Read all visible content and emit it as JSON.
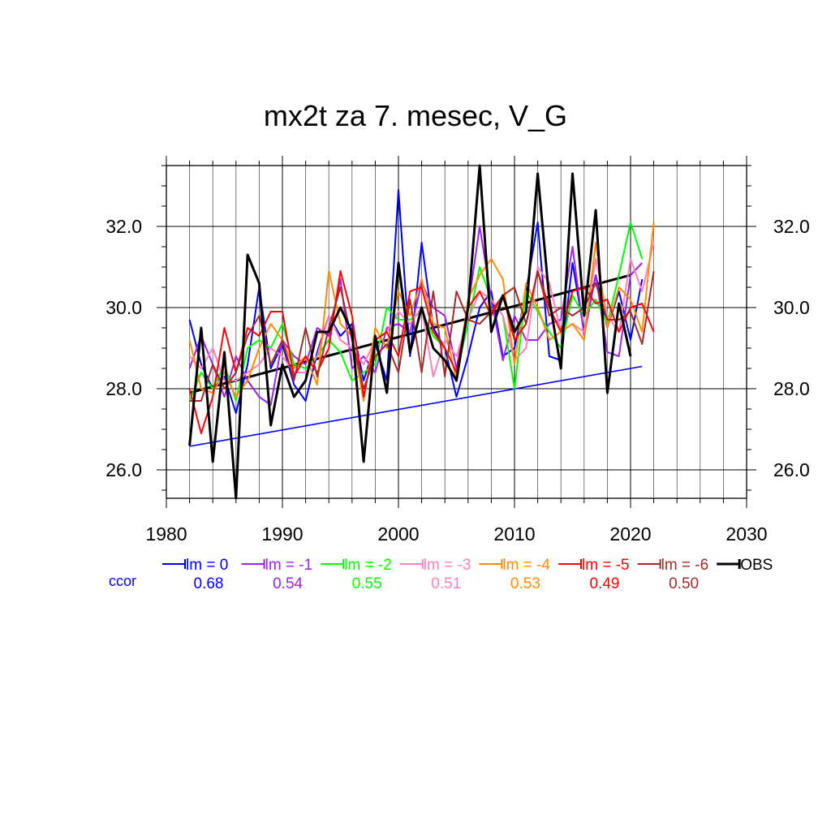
{
  "chart_data": {
    "type": "line",
    "title": "mx2t za 7. mesec, V_G",
    "xlim": [
      1980,
      2030
    ],
    "ylim": [
      25.3,
      33.5
    ],
    "x_ticks": [
      "1980",
      "1990",
      "2000",
      "2010",
      "2020",
      "2030"
    ],
    "y_ticks": [
      "26.0",
      "28.0",
      "30.0",
      "32.0"
    ],
    "grid": true,
    "legend_position": "bottom",
    "ccor_label": "ccor",
    "ccor_color": "#0000ff",
    "series": [
      {
        "name": "lm = 0",
        "color": "#0000ff",
        "ccor": "0.68",
        "x": [
          1982,
          1983,
          1984,
          1985,
          1986,
          1987,
          1988,
          1989,
          1990,
          1991,
          1992,
          1993,
          1994,
          1995,
          1996,
          1997,
          1998,
          1999,
          2000,
          2001,
          2002,
          2003,
          2004,
          2005,
          2006,
          2007,
          2008,
          2009,
          2010,
          2011,
          2012,
          2013,
          2014,
          2015,
          2016,
          2017,
          2018,
          2019,
          2020,
          2021
        ],
        "y": [
          29.7,
          28.6,
          28.0,
          28.3,
          27.4,
          28.6,
          30.5,
          28.5,
          29.1,
          28.1,
          27.7,
          28.9,
          29.8,
          29.3,
          29.6,
          28.2,
          29.1,
          28.2,
          32.9,
          28.8,
          31.6,
          29.5,
          29.0,
          27.8,
          28.8,
          30.0,
          30.4,
          28.8,
          29.0,
          30.4,
          32.1,
          28.8,
          28.7,
          31.1,
          29.4,
          30.8,
          29.5,
          30.4,
          29.2,
          30.7
        ]
      },
      {
        "name": "lm = -1",
        "color": "#a020f0",
        "ccor": "0.54",
        "x": [
          1982,
          1983,
          1984,
          1985,
          1986,
          1987,
          1988,
          1989,
          1990,
          1991,
          1992,
          1993,
          1994,
          1995,
          1996,
          1997,
          1998,
          1999,
          2000,
          2001,
          2002,
          2003,
          2004,
          2005,
          2006,
          2007,
          2008,
          2009,
          2010,
          2011,
          2012,
          2013,
          2014,
          2015,
          2016,
          2017,
          2018,
          2019,
          2020,
          2021
        ],
        "y": [
          28.5,
          29.3,
          28.6,
          27.8,
          28.8,
          28.2,
          27.8,
          27.6,
          29.2,
          28.8,
          28.6,
          29.5,
          29.3,
          30.7,
          28.5,
          28.8,
          28.4,
          29.5,
          29.6,
          29.4,
          30.6,
          30.0,
          29.8,
          28.5,
          30.0,
          32.0,
          30.2,
          28.7,
          29.8,
          29.2,
          29.2,
          29.6,
          29.7,
          31.5,
          29.3,
          30.8,
          28.9,
          28.8,
          30.8,
          31.1
        ]
      },
      {
        "name": "lm = -2",
        "color": "#00ff00",
        "ccor": "0.55",
        "x": [
          1982,
          1983,
          1984,
          1985,
          1986,
          1987,
          1988,
          1989,
          1990,
          1991,
          1992,
          1993,
          1994,
          1995,
          1996,
          1997,
          1998,
          1999,
          2000,
          2001,
          2002,
          2003,
          2004,
          2005,
          2006,
          2007,
          2008,
          2009,
          2010,
          2011,
          2012,
          2013,
          2014,
          2015,
          2016,
          2017,
          2018,
          2019,
          2020,
          2021
        ],
        "y": [
          27.7,
          28.4,
          28.0,
          28.6,
          27.7,
          29.0,
          29.2,
          29.0,
          29.6,
          28.6,
          28.5,
          28.8,
          29.2,
          28.9,
          28.2,
          28.4,
          28.6,
          30.0,
          29.7,
          29.7,
          29.9,
          29.3,
          29.0,
          28.4,
          29.6,
          31.0,
          30.2,
          29.8,
          28.0,
          30.4,
          29.9,
          29.4,
          29.0,
          30.3,
          29.8,
          30.2,
          29.6,
          30.8,
          32.1,
          31.2
        ]
      },
      {
        "name": "lm = -3",
        "color": "#ff7fbf",
        "ccor": "0.51",
        "x": [
          1982,
          1983,
          1984,
          1985,
          1986,
          1987,
          1988,
          1989,
          1990,
          1991,
          1992,
          1993,
          1994,
          1995,
          1996,
          1997,
          1998,
          1999,
          2000,
          2001,
          2002,
          2003,
          2004,
          2005,
          2006,
          2007,
          2008,
          2009,
          2010,
          2011,
          2012,
          2013,
          2014,
          2015,
          2016,
          2017,
          2018,
          2019,
          2020,
          2021,
          2022
        ],
        "y": [
          28.8,
          28.5,
          29.0,
          28.2,
          28.2,
          28.4,
          28.6,
          29.0,
          28.8,
          28.4,
          28.4,
          28.8,
          29.8,
          29.2,
          29.0,
          28.6,
          29.2,
          29.4,
          29.9,
          29.6,
          30.0,
          28.3,
          29.2,
          28.8,
          29.7,
          30.4,
          30.2,
          29.8,
          28.7,
          29.0,
          31.0,
          30.6,
          29.4,
          29.6,
          29.4,
          31.2,
          29.8,
          29.4,
          31.2,
          30.4,
          31.6
        ]
      },
      {
        "name": "lm = -4",
        "color": "#ff8c00",
        "ccor": "0.53",
        "x": [
          1982,
          1983,
          1984,
          1985,
          1986,
          1987,
          1988,
          1989,
          1990,
          1991,
          1992,
          1993,
          1994,
          1995,
          1996,
          1997,
          1998,
          1999,
          2000,
          2001,
          2002,
          2003,
          2004,
          2005,
          2006,
          2007,
          2008,
          2009,
          2010,
          2011,
          2012,
          2013,
          2014,
          2015,
          2016,
          2017,
          2018,
          2019,
          2020,
          2021,
          2022
        ],
        "y": [
          29.2,
          28.0,
          27.9,
          28.4,
          27.8,
          28.2,
          29.0,
          29.6,
          29.2,
          28.5,
          28.8,
          28.1,
          30.9,
          29.6,
          29.3,
          27.7,
          29.5,
          29.0,
          30.4,
          29.8,
          30.7,
          29.6,
          29.5,
          28.2,
          30.2,
          30.8,
          31.2,
          30.7,
          28.6,
          30.6,
          30.0,
          29.2,
          29.4,
          29.6,
          29.2,
          31.6,
          29.5,
          30.5,
          30.2,
          29.4,
          32.1
        ]
      },
      {
        "name": "lm = -5",
        "color": "#ff0000",
        "ccor": "0.49",
        "x": [
          1982,
          1983,
          1984,
          1985,
          1986,
          1987,
          1988,
          1989,
          1990,
          1991,
          1992,
          1993,
          1994,
          1995,
          1996,
          1997,
          1998,
          1999,
          2000,
          2001,
          2002,
          2003,
          2004,
          2005,
          2006,
          2007,
          2008,
          2009,
          2010,
          2011,
          2012,
          2013,
          2014,
          2015,
          2016,
          2017,
          2018,
          2019,
          2020,
          2021,
          2022
        ],
        "y": [
          28.0,
          26.9,
          27.8,
          29.5,
          28.4,
          29.5,
          29.3,
          29.9,
          29.9,
          28.3,
          28.8,
          28.4,
          29.0,
          30.9,
          29.8,
          27.8,
          29.2,
          29.4,
          28.8,
          30.4,
          30.5,
          29.4,
          29.0,
          28.4,
          30.0,
          30.4,
          29.8,
          30.3,
          29.2,
          29.6,
          30.9,
          30.0,
          29.4,
          30.4,
          30.5,
          30.1,
          30.2,
          29.4,
          30.0,
          30.1,
          29.4
        ]
      },
      {
        "name": "lm = -6",
        "color": "#a52a2a",
        "ccor": "0.50",
        "x": [
          1982,
          1983,
          1984,
          1985,
          1986,
          1987,
          1988,
          1989,
          1990,
          1991,
          1992,
          1993,
          1994,
          1995,
          1996,
          1997,
          1998,
          1999,
          2000,
          2001,
          2002,
          2003,
          2004,
          2005,
          2006,
          2007,
          2008,
          2009,
          2010,
          2011,
          2012,
          2013,
          2014,
          2015,
          2016,
          2017,
          2018,
          2019,
          2020,
          2021,
          2022
        ],
        "y": [
          27.7,
          27.7,
          28.6,
          28.0,
          28.4,
          29.3,
          29.8,
          28.6,
          29.2,
          28.2,
          29.5,
          28.3,
          29.5,
          30.5,
          29.2,
          28.0,
          28.8,
          29.1,
          28.4,
          30.2,
          28.4,
          30.4,
          28.3,
          30.4,
          29.7,
          29.6,
          29.9,
          30.3,
          30.5,
          29.6,
          30.9,
          29.8,
          30.0,
          29.8,
          30.0,
          30.6,
          29.7,
          29.7,
          29.9,
          29.1,
          30.9
        ]
      },
      {
        "name": "OBS",
        "color": "#000000",
        "ccor": "",
        "x": [
          1982,
          1983,
          1984,
          1985,
          1986,
          1987,
          1988,
          1989,
          1990,
          1991,
          1992,
          1993,
          1994,
          1995,
          1996,
          1997,
          1998,
          1999,
          2000,
          2001,
          2002,
          2003,
          2004,
          2005,
          2006,
          2007,
          2008,
          2009,
          2010,
          2011,
          2012,
          2013,
          2014,
          2015,
          2016,
          2017,
          2018,
          2019,
          2020
        ],
        "y": [
          26.6,
          29.5,
          26.2,
          28.9,
          25.3,
          31.3,
          30.6,
          27.1,
          28.6,
          27.8,
          28.2,
          29.4,
          29.4,
          30.0,
          29.4,
          26.2,
          29.3,
          27.9,
          31.1,
          28.9,
          30.0,
          29.0,
          28.7,
          28.2,
          30.0,
          33.5,
          29.4,
          30.3,
          29.4,
          29.9,
          33.3,
          30.2,
          28.5,
          33.3,
          29.8,
          32.4,
          27.9,
          30.1,
          28.8
        ]
      }
    ],
    "trend_lines": [
      {
        "name": "OBS trend",
        "color": "#000000",
        "x": [
          1982,
          2020
        ],
        "y": [
          27.9,
          30.8
        ]
      },
      {
        "name": "lm = 0 trend",
        "color": "#0000ff",
        "x": [
          1982,
          2021
        ],
        "y": [
          26.58,
          28.55
        ]
      }
    ]
  }
}
